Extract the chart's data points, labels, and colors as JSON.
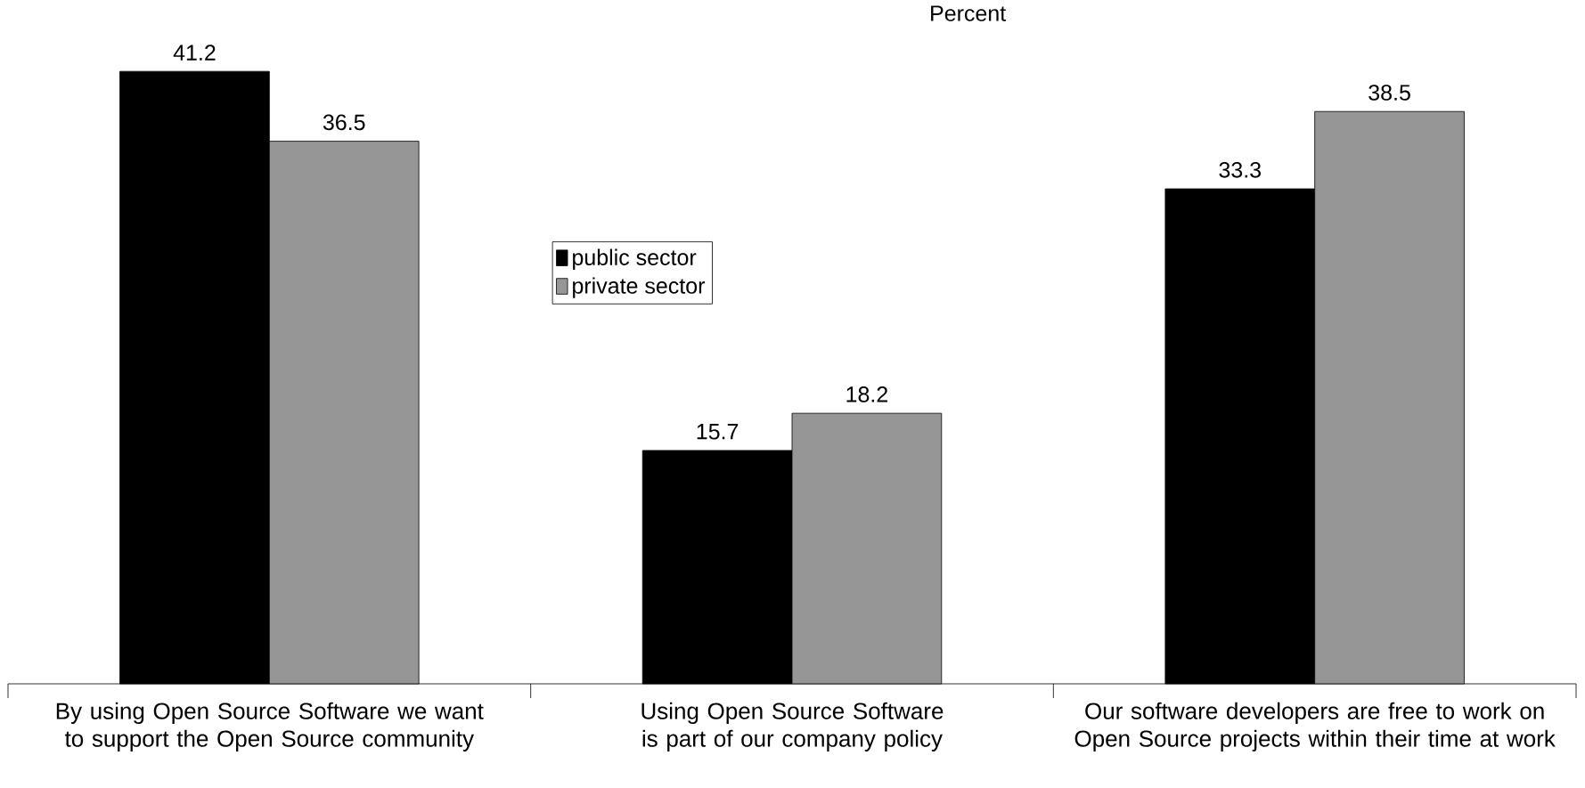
{
  "chart_data": {
    "type": "bar",
    "title": "Percent",
    "categories": [
      "By using Open Source Software we want to support the Open Source community",
      "Using Open Source Software is part of our company policy",
      "Our software developers are free to work on Open Source projects within their time at work"
    ],
    "series": [
      {
        "name": "public sector",
        "color": "#000000",
        "values": [
          41.2,
          15.7,
          33.3
        ]
      },
      {
        "name": "private sector",
        "color": "#969696",
        "values": [
          36.5,
          18.2,
          38.5
        ]
      }
    ],
    "data_labels": true,
    "legend": "top"
  }
}
